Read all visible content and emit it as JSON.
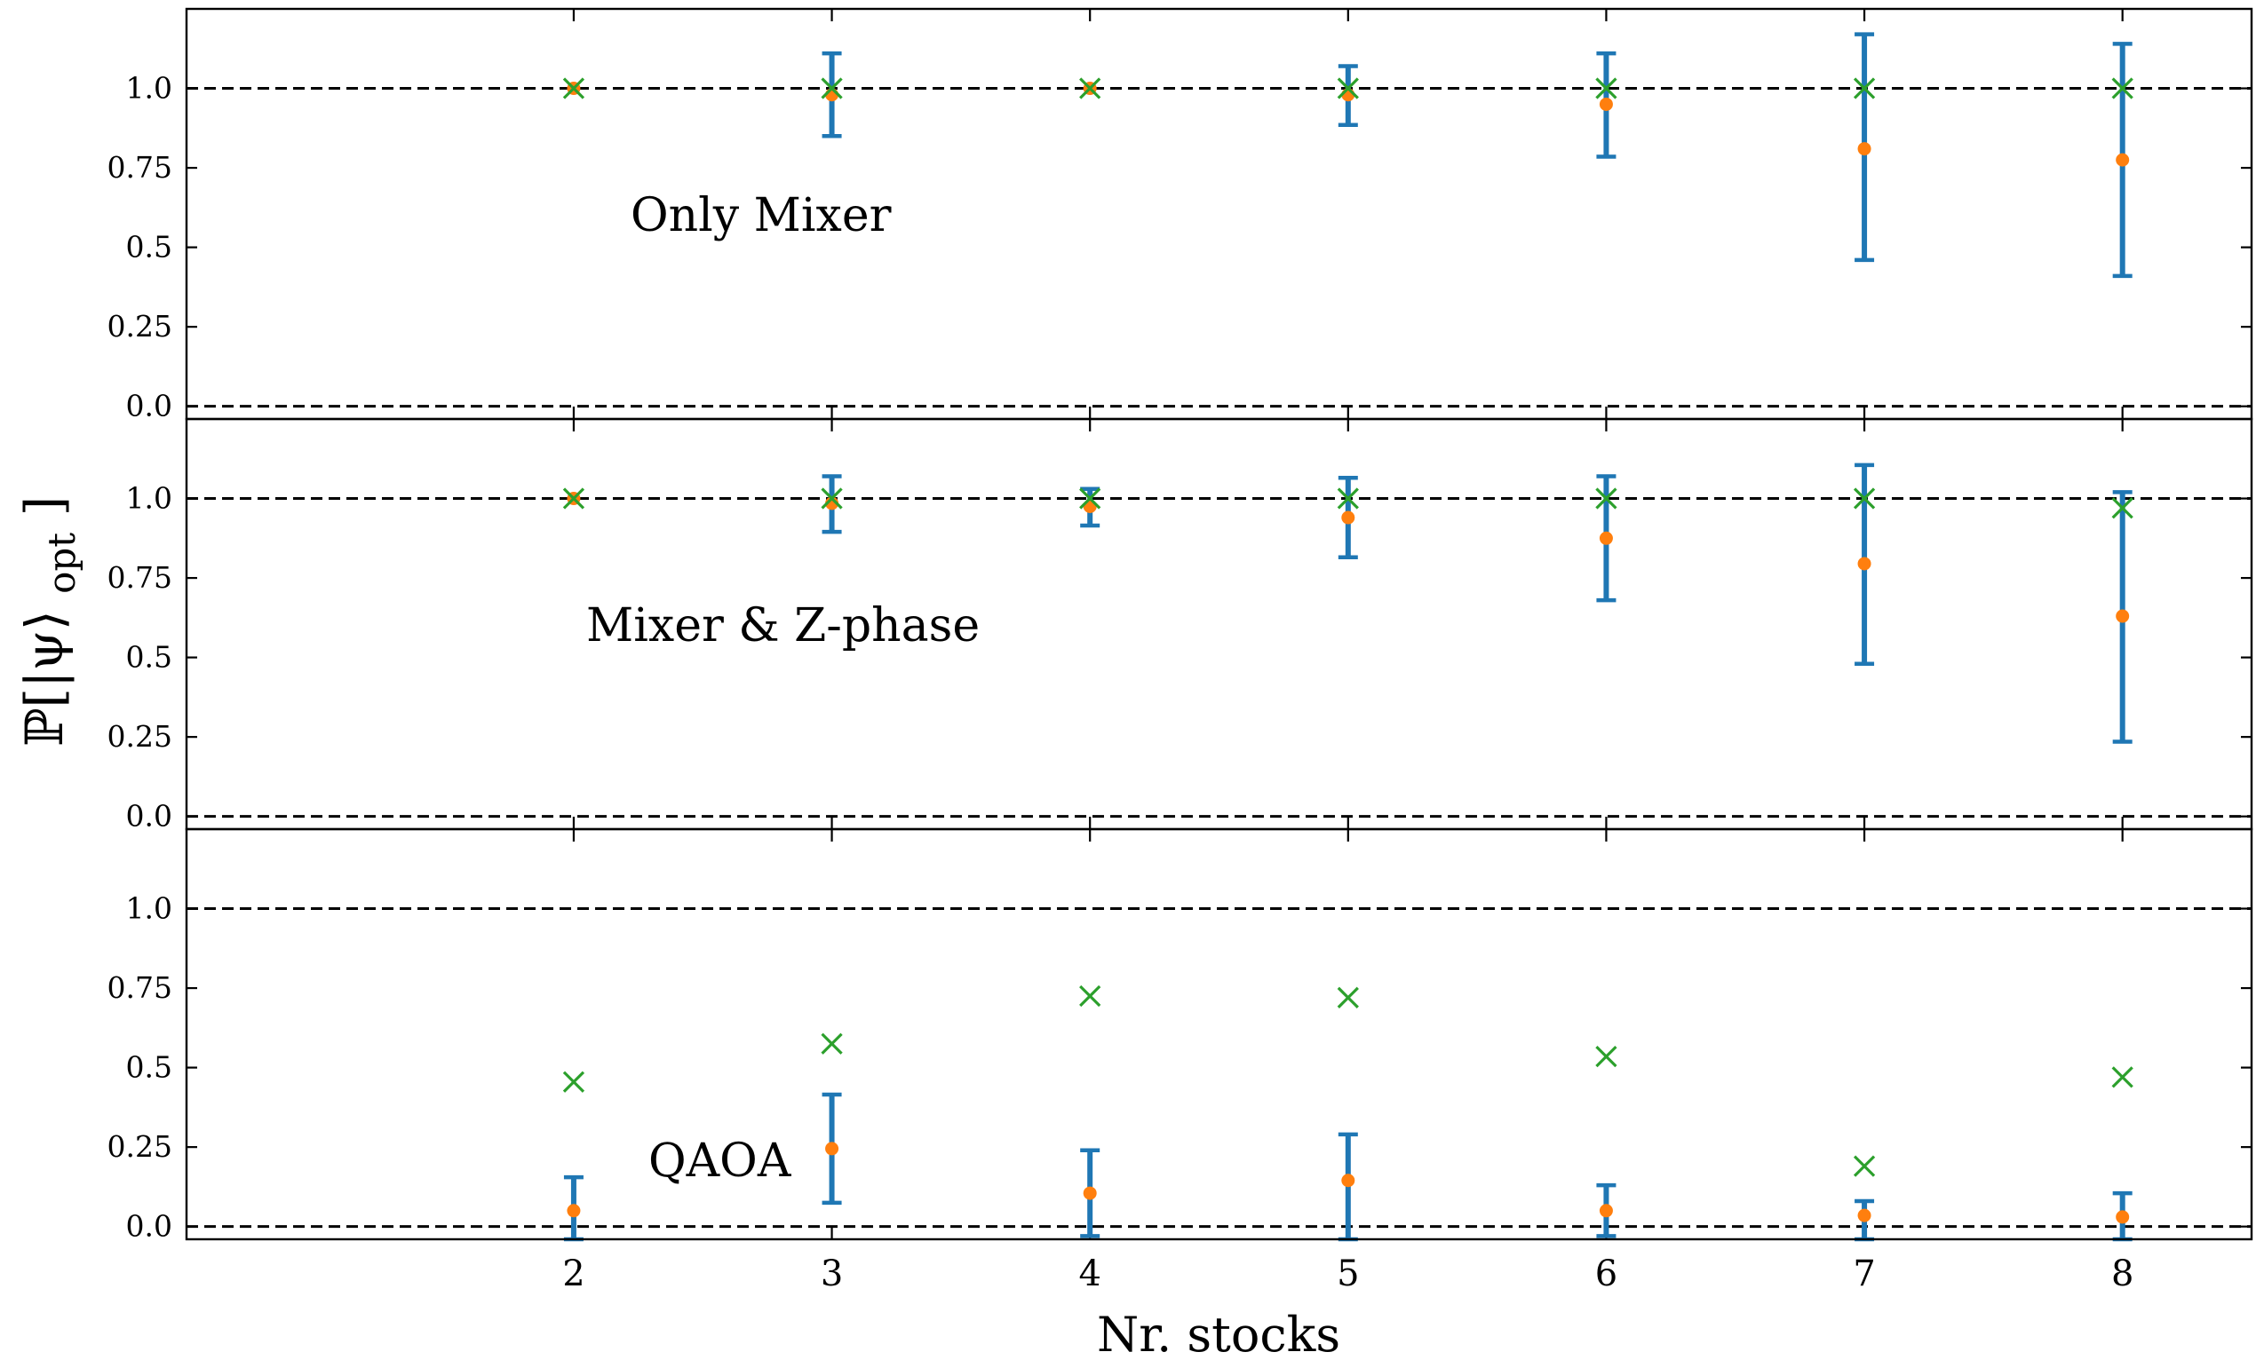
{
  "chart_data": {
    "type": "scatter",
    "xlabel": "Nr. stocks",
    "ylabel": {
      "main": "ℙ[|ψ⟩",
      "sub": "opt",
      "close": "]"
    },
    "x_ticks": [
      "2",
      "3",
      "4",
      "5",
      "6",
      "7",
      "8"
    ],
    "y_ticks": [
      "0.0",
      "0.25",
      "0.5",
      "0.75",
      "1.0"
    ],
    "xlim": [
      0.5,
      8.5
    ],
    "ylim": [
      -0.04,
      1.25
    ],
    "reference_lines": [
      0.0,
      1.0
    ],
    "colors": {
      "errorbar": "#1f77b4",
      "mean": "#ff7f0e",
      "max": "#2ca02c",
      "reference": "#000000"
    },
    "panels": [
      {
        "label": "Only Mixer",
        "x": [
          2,
          3,
          4,
          5,
          6,
          7,
          8
        ],
        "mean": [
          1.0,
          0.98,
          1.0,
          0.98,
          0.95,
          0.81,
          0.775
        ],
        "err_low": [
          1.0,
          0.85,
          1.0,
          0.885,
          0.785,
          0.46,
          0.41
        ],
        "err_high": [
          1.0,
          1.11,
          1.0,
          1.07,
          1.11,
          1.17,
          1.14
        ],
        "max": [
          1.0,
          1.0,
          1.0,
          1.0,
          1.0,
          1.0,
          1.0
        ]
      },
      {
        "label": "Mixer & Z-phase",
        "x": [
          2,
          3,
          4,
          5,
          6,
          7,
          8
        ],
        "mean": [
          1.0,
          0.985,
          0.975,
          0.94,
          0.875,
          0.795,
          0.63
        ],
        "err_low": [
          1.0,
          0.895,
          0.915,
          0.815,
          0.68,
          0.48,
          0.235
        ],
        "err_high": [
          1.0,
          1.07,
          1.03,
          1.065,
          1.07,
          1.105,
          1.02
        ],
        "max": [
          1.0,
          1.0,
          1.0,
          1.0,
          1.0,
          1.0,
          0.97
        ]
      },
      {
        "label": "QAOA",
        "x": [
          2,
          3,
          4,
          5,
          6,
          7,
          8
        ],
        "mean": [
          0.05,
          0.245,
          0.105,
          0.145,
          0.05,
          0.035,
          0.03
        ],
        "err_low": [
          -0.04,
          0.075,
          -0.03,
          -0.04,
          -0.03,
          -0.04,
          -0.04
        ],
        "err_high": [
          0.155,
          0.415,
          0.24,
          0.29,
          0.13,
          0.08,
          0.105
        ],
        "max": [
          0.455,
          0.575,
          0.725,
          0.72,
          0.535,
          0.19,
          0.47
        ]
      }
    ]
  }
}
